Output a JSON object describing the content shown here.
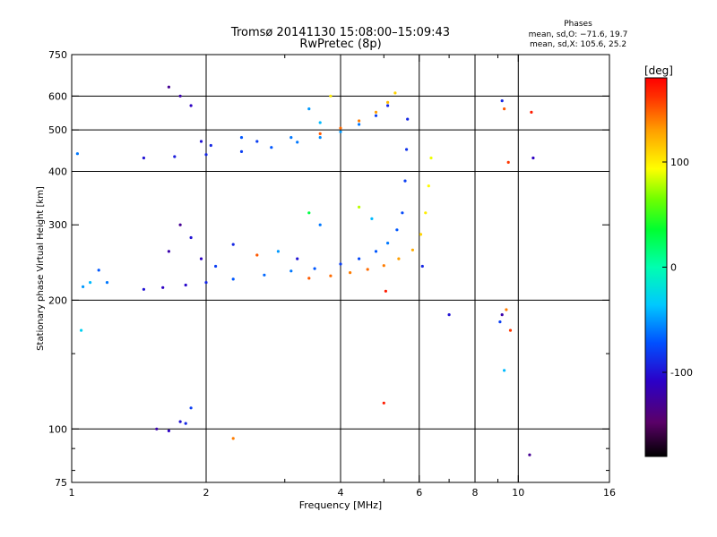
{
  "chart_data": {
    "type": "scatter",
    "title": "Tromsø 20141130 15:08:00–15:09:43",
    "subtitle": "RwPretec (8p)",
    "annotation": {
      "heading": "Phases",
      "line1": "mean, sd,O: −71.6, 19.7",
      "line2": "mean, sd,X: 105.6, 25.2"
    },
    "xlabel": "Frequency [MHz]",
    "ylabel": "Stationary phase Virtual Height [km]",
    "x_scale": "log",
    "y_scale": "log",
    "xlim": [
      1,
      16
    ],
    "ylim": [
      75,
      750
    ],
    "x_ticks": [
      1,
      2,
      4,
      6,
      8,
      10,
      16
    ],
    "x_minor_ticks": [
      3,
      5,
      7,
      9
    ],
    "y_ticks": [
      75,
      100,
      200,
      300,
      400,
      500,
      600,
      750
    ],
    "y_minor_ticks": [
      80,
      90,
      150
    ],
    "x_grid": [
      2,
      4,
      6,
      8,
      10
    ],
    "y_grid": [
      100,
      200,
      400,
      500,
      600
    ],
    "grid": true,
    "colorbar": {
      "label": "[deg]",
      "min": -180,
      "max": 180,
      "ticks": [
        100,
        0,
        -100
      ],
      "colors": [
        "#000000",
        "#5a0068",
        "#2b00c8",
        "#0050ff",
        "#00c8ff",
        "#00ffb0",
        "#00ff30",
        "#70ff00",
        "#ffff00",
        "#ffa000",
        "#ff3000",
        "#ff0000"
      ]
    },
    "series": [
      {
        "trace": "lower-o-trace",
        "x": [
          1.45,
          1.6,
          1.8,
          2.0,
          2.3,
          2.7,
          3.1,
          3.5,
          4.0,
          4.4,
          4.8,
          5.1,
          5.35,
          5.5,
          5.58,
          5.62,
          5.65
        ],
        "y": [
          212,
          214,
          217,
          220,
          224,
          229,
          234,
          237,
          243,
          250,
          260,
          272,
          292,
          320,
          380,
          450,
          530
        ],
        "phase": [
          -100,
          -110,
          -105,
          -90,
          -70,
          -65,
          -60,
          -70,
          -80,
          -75,
          -70,
          -60,
          -70,
          -75,
          -80,
          -85,
          -90
        ]
      },
      {
        "trace": "lower-x-trace",
        "x": [
          3.4,
          3.8,
          4.2,
          4.6,
          5.0,
          5.4,
          5.8,
          6.05,
          6.2,
          6.3,
          6.38
        ],
        "y": [
          225,
          228,
          232,
          236,
          241,
          250,
          262,
          285,
          320,
          370,
          430
        ],
        "phase": [
          150,
          145,
          140,
          145,
          140,
          130,
          125,
          110,
          100,
          95,
          90
        ]
      },
      {
        "trace": "upper-o-trace",
        "x": [
          1.45,
          1.7,
          2.0,
          2.4,
          2.8,
          3.2,
          3.6,
          4.0,
          4.4,
          4.8,
          5.1
        ],
        "y": [
          430,
          433,
          438,
          445,
          455,
          468,
          480,
          495,
          515,
          540,
          570
        ],
        "phase": [
          -100,
          -95,
          -90,
          -80,
          -70,
          -60,
          -55,
          -50,
          -60,
          -80,
          -90
        ]
      },
      {
        "trace": "upper-x-trace",
        "x": [
          3.6,
          4.0,
          4.4,
          4.8,
          5.1,
          5.3
        ],
        "y": [
          490,
          505,
          525,
          550,
          580,
          610
        ],
        "phase": [
          150,
          145,
          140,
          130,
          120,
          110
        ]
      },
      {
        "trace": "f-region-cluster-low",
        "x": [
          1.65,
          1.75,
          1.85,
          1.95,
          2.1,
          2.3,
          2.6,
          2.9,
          3.2,
          3.4,
          3.6,
          4.4,
          4.7
        ],
        "y": [
          260,
          300,
          280,
          250,
          240,
          270,
          255,
          260,
          250,
          320,
          300,
          330,
          310
        ],
        "phase": [
          -120,
          -130,
          -100,
          -110,
          -80,
          -90,
          150,
          -50,
          -100,
          30,
          -60,
          80,
          -40
        ]
      },
      {
        "trace": "f-region-cluster-high",
        "x": [
          1.65,
          1.75,
          1.85,
          1.95,
          2.05,
          2.4,
          2.6,
          3.1,
          3.4,
          3.6,
          3.8
        ],
        "y": [
          630,
          600,
          570,
          470,
          460,
          480,
          470,
          480,
          560,
          520,
          600
        ],
        "phase": [
          -130,
          -120,
          -110,
          -100,
          -90,
          -70,
          -80,
          -60,
          -50,
          -40,
          100
        ]
      },
      {
        "trace": "e-region-echoes",
        "x": [
          1.55,
          1.65,
          1.75,
          1.8,
          1.85,
          2.3
        ],
        "y": [
          100,
          99,
          104,
          103,
          112,
          95
        ],
        "phase": [
          -120,
          -110,
          -100,
          -90,
          -80,
          140
        ]
      },
      {
        "trace": "low-frequency-echoes",
        "x": [
          1.03,
          1.06,
          1.1,
          1.05,
          1.15,
          1.2
        ],
        "y": [
          440,
          215,
          220,
          170,
          235,
          220
        ],
        "phase": [
          -60,
          -50,
          -40,
          -30,
          -70,
          -60
        ]
      },
      {
        "trace": "sparse-echoes",
        "x": [
          9.2,
          9.3,
          9.5,
          9.4,
          9.6,
          10.7,
          10.8,
          10.6,
          9.2,
          9.1,
          7.0,
          6.1,
          5.05,
          5.0,
          9.3
        ],
        "y": [
          585,
          560,
          420,
          190,
          170,
          550,
          430,
          87,
          185,
          178,
          185,
          240,
          210,
          115,
          137
        ],
        "phase": [
          -90,
          150,
          160,
          140,
          160,
          170,
          -110,
          -130,
          -120,
          -80,
          -100,
          -90,
          170,
          170,
          -40
        ]
      }
    ]
  }
}
